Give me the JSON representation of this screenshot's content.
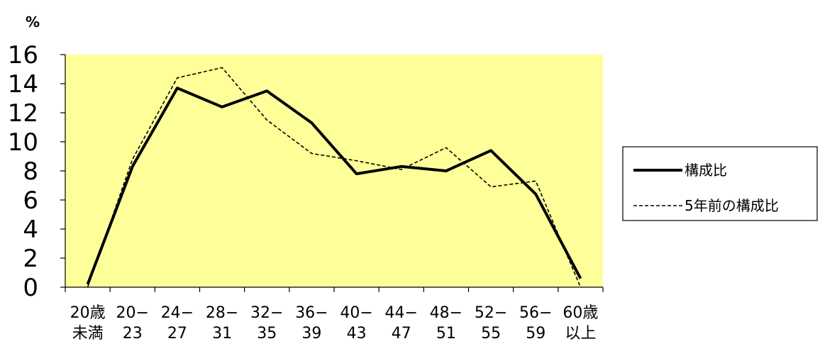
{
  "chart_data": {
    "type": "line",
    "ylabel": "%",
    "ylim": [
      0,
      16
    ],
    "yticks": [
      "0",
      "2",
      "4",
      "6",
      "8",
      "10",
      "12",
      "14",
      "16"
    ],
    "categories": [
      [
        "20歳",
        "未満"
      ],
      [
        "20−",
        "23"
      ],
      [
        "24−",
        "27"
      ],
      [
        "28−",
        "31"
      ],
      [
        "32−",
        "35"
      ],
      [
        "36−",
        "39"
      ],
      [
        "40−",
        "43"
      ],
      [
        "44−",
        "47"
      ],
      [
        "48−",
        "51"
      ],
      [
        "52−",
        "55"
      ],
      [
        "56−",
        "59"
      ],
      [
        "60歳",
        "以上"
      ]
    ],
    "series": [
      {
        "name": "構成比",
        "style": "solid",
        "values": [
          0.2,
          8.3,
          13.7,
          12.4,
          13.5,
          11.3,
          7.8,
          8.3,
          8.0,
          9.4,
          6.4,
          0.6
        ]
      },
      {
        "name": "5年前の構成比",
        "style": "dashed",
        "values": [
          0.0,
          8.8,
          14.4,
          15.1,
          11.5,
          9.2,
          8.7,
          8.1,
          9.6,
          6.9,
          7.3,
          0.0
        ]
      }
    ],
    "plot_background": "#ffff99",
    "line_color": "#000000",
    "grid": false,
    "legend_position": "right"
  }
}
